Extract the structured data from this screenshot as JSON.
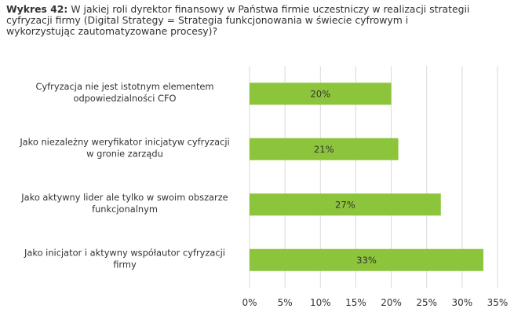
{
  "header": {
    "figure_number": "Wykres 42:",
    "question": "W jakiej roli dyrektor finansowy w Państwa firmie uczestniczy w realizacji strategii cyfryzacji firmy (Digital Strategy = Strategia funkcjonowania w świecie cyfrowym i wykorzystując zautomatyzowane procesy)?"
  },
  "chart_data": {
    "type": "bar",
    "orientation": "horizontal",
    "categories": [
      [
        "Cyfryzacja nie jest istotnym elementem",
        "odpowiedzialności CFO"
      ],
      [
        "Jako niezależny weryfikator inicjatyw cyfryzacji",
        "w gronie zarządu"
      ],
      [
        "Jako aktywny lider ale tylko w swoim obszarze",
        "funkcjonalnym"
      ],
      [
        "Jako inicjator i aktywny współautor cyfryzacji",
        "firmy"
      ]
    ],
    "values": [
      20,
      21,
      27,
      33
    ],
    "data_labels": [
      "20%",
      "21%",
      "27%",
      "33%"
    ],
    "xlim": [
      0,
      35
    ],
    "xticks": [
      0,
      5,
      10,
      15,
      20,
      25,
      30,
      35
    ],
    "xtick_labels": [
      "0%",
      "5%",
      "10%",
      "15%",
      "20%",
      "25%",
      "30%",
      "35%"
    ],
    "bar_color": "#8cc43c",
    "grid": "vertical",
    "legend": "none"
  }
}
